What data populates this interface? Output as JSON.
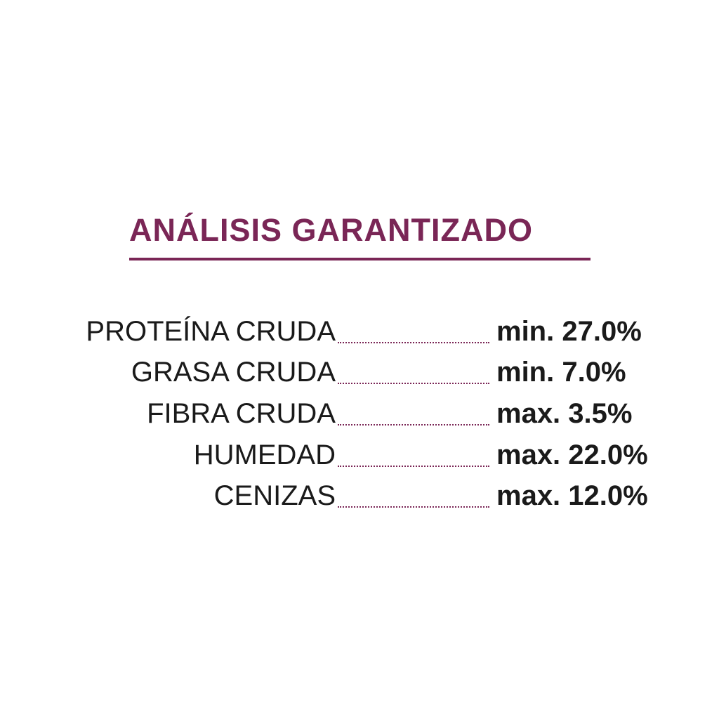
{
  "title": "ANÁLISIS GARANTIZADO",
  "accent_color": "#7a2656",
  "rows": [
    {
      "label": "PROTEÍNA CRUDA",
      "value": "min. 27.0%"
    },
    {
      "label": "GRASA CRUDA",
      "value": "min. 7.0%"
    },
    {
      "label": "FIBRA CRUDA",
      "value": "max. 3.5%"
    },
    {
      "label": "HUMEDAD",
      "value": "max. 22.0%"
    },
    {
      "label": "CENIZAS",
      "value": "max. 12.0%"
    }
  ]
}
